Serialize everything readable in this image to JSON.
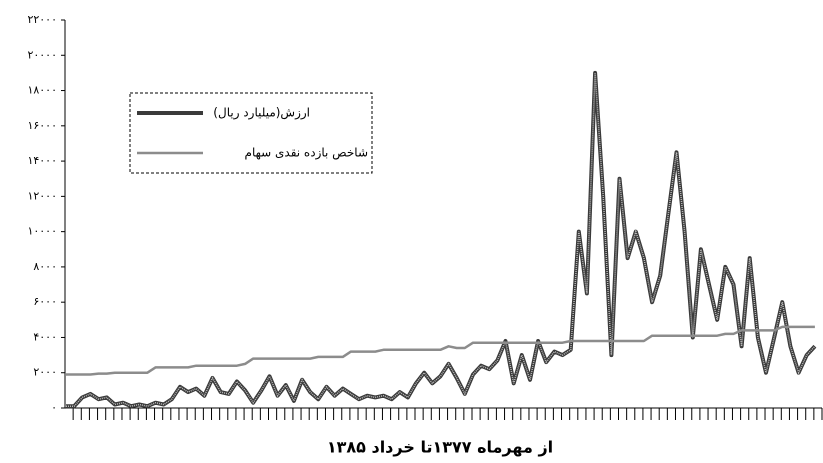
{
  "chart_data": {
    "type": "line",
    "title": "از مهرماه ۱۳۷۷تا خرداد ۱۳۸۵",
    "categories": [
      null,
      null,
      null,
      null,
      null,
      null,
      null,
      null,
      null,
      null,
      null,
      null,
      null,
      null,
      null,
      null,
      null,
      null,
      null,
      null,
      null,
      null,
      null,
      null,
      null,
      null,
      null,
      null,
      null,
      null,
      null,
      null,
      null,
      null,
      null,
      null,
      null,
      null,
      null,
      null,
      null,
      null,
      null,
      null,
      null,
      null,
      null,
      null,
      null,
      null,
      null,
      null,
      null,
      null,
      null,
      null,
      null,
      null,
      null,
      null,
      null,
      null,
      null,
      null,
      null,
      null,
      null,
      null,
      null,
      null,
      null,
      null,
      null,
      null,
      null,
      null,
      null,
      null,
      null,
      null,
      null,
      null,
      null,
      null,
      null,
      null,
      null,
      null,
      null,
      null,
      null,
      null,
      null
    ],
    "series": [
      {
        "name": "ارزش(میلیارد ریال)",
        "color": "#3a3a3a",
        "values": [
          100,
          100,
          600,
          800,
          500,
          600,
          200,
          300,
          100,
          200,
          100,
          300,
          200,
          500,
          1200,
          900,
          1100,
          700,
          1700,
          900,
          800,
          1500,
          1000,
          300,
          1000,
          1800,
          700,
          1300,
          400,
          1600,
          900,
          500,
          1200,
          700,
          1100,
          800,
          500,
          700,
          600,
          700,
          500,
          900,
          600,
          1400,
          2000,
          1400,
          1800,
          2500,
          1700,
          800,
          1900,
          2400,
          2200,
          2700,
          3800,
          1400,
          3000,
          1600,
          3800,
          2600,
          3200,
          3000,
          3300,
          10000,
          6500,
          19000,
          12000,
          3000,
          13000,
          8500,
          10000,
          8500,
          6000,
          7500,
          11000,
          14500,
          10000,
          4000,
          9000,
          7000,
          5000,
          8000,
          7000,
          3500,
          8500,
          4000,
          2000,
          4000,
          6000,
          3500,
          2000,
          3000,
          3500
        ]
      },
      {
        "name": "شاخص بازده نقدی سهام",
        "color": "#8c8c8c",
        "values": [
          1900,
          1900,
          1900,
          1900,
          1950,
          1950,
          2000,
          2000,
          2000,
          2000,
          2000,
          2300,
          2300,
          2300,
          2300,
          2300,
          2400,
          2400,
          2400,
          2400,
          2400,
          2400,
          2500,
          2800,
          2800,
          2800,
          2800,
          2800,
          2800,
          2800,
          2800,
          2900,
          2900,
          2900,
          2900,
          3200,
          3200,
          3200,
          3200,
          3300,
          3300,
          3300,
          3300,
          3300,
          3300,
          3300,
          3300,
          3500,
          3400,
          3400,
          3700,
          3700,
          3700,
          3700,
          3700,
          3700,
          3700,
          3700,
          3700,
          3700,
          3700,
          3700,
          3800,
          3800,
          3800,
          3800,
          3800,
          3800,
          3800,
          3800,
          3800,
          3800,
          4100,
          4100,
          4100,
          4100,
          4100,
          4100,
          4100,
          4100,
          4100,
          4200,
          4200,
          4400,
          4400,
          4400,
          4400,
          4400,
          4600,
          4600,
          4600,
          4600,
          4600
        ]
      }
    ],
    "ylim": [
      0,
      22000
    ],
    "yticks": [
      {
        "value": 0,
        "label": "۰"
      },
      {
        "value": 2000,
        "label": "۲۰۰۰"
      },
      {
        "value": 4000,
        "label": "۴۰۰۰"
      },
      {
        "value": 6000,
        "label": "۶۰۰۰"
      },
      {
        "value": 8000,
        "label": "۸۰۰۰"
      },
      {
        "value": 10000,
        "label": "۱۰۰۰۰"
      },
      {
        "value": 12000,
        "label": "۱۲۰۰۰"
      },
      {
        "value": 14000,
        "label": "۱۴۰۰۰"
      },
      {
        "value": 16000,
        "label": "۱۶۰۰۰"
      },
      {
        "value": 18000,
        "label": "۱۸۰۰۰"
      },
      {
        "value": 20000,
        "label": "۲۰۰۰۰"
      },
      {
        "value": 22000,
        "label": "۲۲۰۰۰"
      }
    ],
    "grid": false
  }
}
